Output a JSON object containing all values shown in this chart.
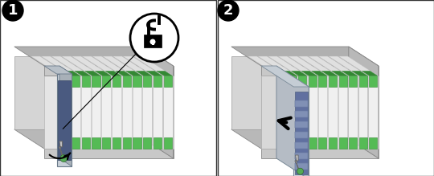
{
  "fig_width": 5.4,
  "fig_height": 2.19,
  "dpi": 100,
  "bg_color": "#ffffff",
  "border_color": "#333333",
  "green_tab": "#55bb55",
  "green_tab_dark": "#338833",
  "arrow_color": "#000000",
  "chassis_face": "#e8e8e8",
  "chassis_top": "#d0d0d0",
  "chassis_rail": "#c0c0c0",
  "chassis_dark": "#909090",
  "card_face": "#f2f2f2",
  "card_edge": "#bbbbbb",
  "module_face": "#d8dde3",
  "module_side": "#c0c5cc",
  "module_top": "#b8bec5",
  "module_pcb": "#5a6a90",
  "handle_color": "#c8c8c8",
  "lock_color": "#000000",
  "wht": "#ffffff",
  "blk": "#000000"
}
